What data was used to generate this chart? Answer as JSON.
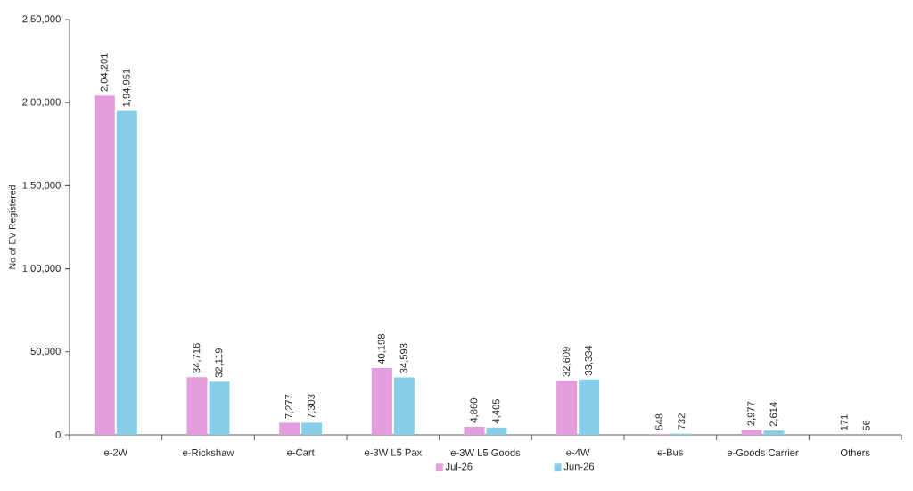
{
  "chart_data": {
    "type": "bar",
    "ylabel": "No of EV Registered",
    "categories": [
      "e-2W",
      "e-Rickshaw",
      "e-Cart",
      "e-3W L5 Pax",
      "e-3W L5 Goods",
      "e-4W",
      "e-Bus",
      "e-Goods Carrier",
      "Others"
    ],
    "series": [
      {
        "name": "Jul-26",
        "color": "#e59edd",
        "values": [
          204201,
          34716,
          7277,
          40198,
          4860,
          32609,
          548,
          2977,
          171
        ],
        "value_labels": [
          "2,04,201",
          "34,716",
          "7,277",
          "40,198",
          "4,860",
          "32,609",
          "548",
          "2,977",
          "171"
        ]
      },
      {
        "name": "Jun-26",
        "color": "#87ceeb",
        "values": [
          194951,
          32119,
          7303,
          34593,
          4405,
          33334,
          732,
          2614,
          56
        ],
        "value_labels": [
          "1,94,951",
          "32,119",
          "7,303",
          "34,593",
          "4,405",
          "33,334",
          "732",
          "2,614",
          "56"
        ]
      }
    ],
    "ylim": [
      0,
      250000
    ],
    "yticks": [
      0,
      {
        "value": 50000,
        "label": "50,000"
      },
      {
        "value": 100000,
        "label": "1,00,000"
      },
      {
        "value": 150000,
        "label": "1,50,000"
      },
      {
        "value": 200000,
        "label": "2,00,000"
      },
      {
        "value": 250000,
        "label": "2,50,000"
      }
    ],
    "grid": false,
    "legend": "bottom"
  }
}
